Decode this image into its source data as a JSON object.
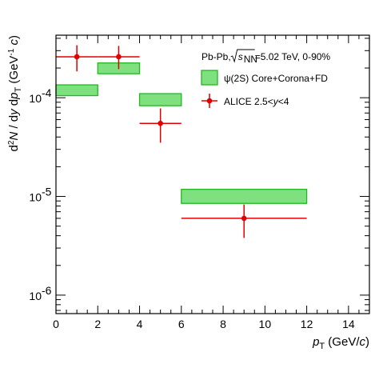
{
  "chart_data": {
    "type": "scatter",
    "title": "",
    "xlabel": "p_T (GeV/c)",
    "ylabel": "d²N / dy dp_T (GeV⁻¹ c)",
    "xlim": [
      0,
      15
    ],
    "ylim": [
      6.5e-07,
      0.00043
    ],
    "yscale": "log",
    "x_ticks": [
      0,
      2,
      4,
      6,
      8,
      10,
      12,
      14
    ],
    "y_ticks": [
      {
        "value": 1e-06,
        "base": "10",
        "exp": "-6"
      },
      {
        "value": 1e-05,
        "base": "10",
        "exp": "-5"
      },
      {
        "value": 0.0001,
        "base": "10",
        "exp": "-4"
      }
    ],
    "grid": false,
    "legend_position": "top-right",
    "annotation": {
      "prefix": "Pb-Pb, ",
      "sqrt": "s",
      "sqrt_sub": "NN",
      "suffix": "=5.02 TeV, 0-90%"
    },
    "series": [
      {
        "name": "ψ(2S) Core+Corona+FD",
        "kind": "band",
        "color": "#7ee07e",
        "edge_color": "#22b822",
        "points": [
          {
            "x_low": 0,
            "x_high": 2,
            "y_low": 0.000105,
            "y_high": 0.000135
          },
          {
            "x_low": 2,
            "x_high": 4,
            "y_low": 0.000175,
            "y_high": 0.000225
          },
          {
            "x_low": 4,
            "x_high": 6,
            "y_low": 8.3e-05,
            "y_high": 0.00011
          },
          {
            "x_low": 6,
            "x_high": 12,
            "y_low": 8.5e-06,
            "y_high": 1.18e-05
          }
        ]
      },
      {
        "name": "ALICE 2.5<y<4",
        "name_parts": {
          "before": "ALICE 2.5<",
          "italic": "y",
          "after": "<4"
        },
        "kind": "points",
        "color": "#e00000",
        "points": [
          {
            "x": 1,
            "x_low": 0,
            "x_high": 2,
            "y": 0.00026,
            "y_low": 0.000185,
            "y_high": 0.00034
          },
          {
            "x": 3,
            "x_low": 2,
            "x_high": 4,
            "y": 0.00026,
            "y_low": 0.000195,
            "y_high": 0.000335
          },
          {
            "x": 5,
            "x_low": 4,
            "x_high": 6,
            "y": 5.5e-05,
            "y_low": 3.5e-05,
            "y_high": 7.8e-05
          },
          {
            "x": 9,
            "x_low": 6,
            "x_high": 12,
            "y": 6e-06,
            "y_low": 3.8e-06,
            "y_high": 8.3e-06
          }
        ]
      }
    ]
  }
}
